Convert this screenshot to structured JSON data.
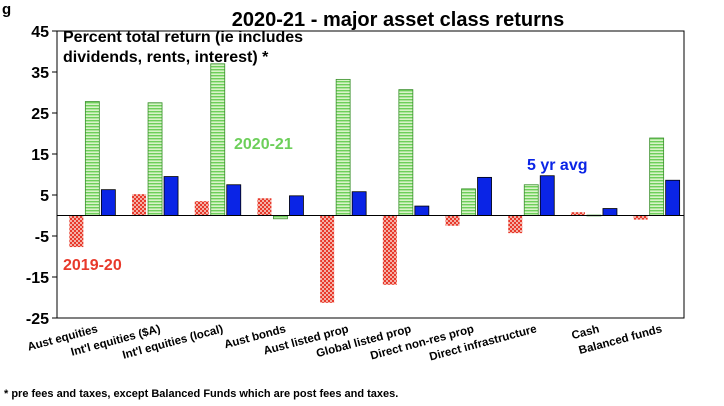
{
  "header": {
    "partial_title": "g",
    "title": "2020-21 - major asset class returns"
  },
  "note_line1": "Percent total return (ie includes",
  "note_line2": "dividends, rents, interest) *",
  "footnote": "* pre fees and taxes, except Balanced Funds which are post fees and taxes.",
  "colors": {
    "series_2019_20": "#e8392b",
    "series_2020_21": "#6dcf5a",
    "series_5yr": "#0a24e6"
  },
  "chart_data": {
    "type": "bar",
    "title": "2020-21 - major asset class returns",
    "categories": [
      "Aust equities",
      "Int'l equities ($A)",
      "Int'l equities (local)",
      "Aust bonds",
      "Aust listed prop",
      "Global listed prop",
      "Direct non-res prop",
      "Direct infrastructure",
      "Cash",
      "Balanced funds"
    ],
    "series": [
      {
        "name": "2019-20",
        "values": [
          -7.7,
          5.2,
          3.5,
          4.2,
          -21.3,
          -16.9,
          -2.5,
          -4.3,
          0.8,
          -1.0
        ]
      },
      {
        "name": "2020-21",
        "values": [
          27.8,
          27.5,
          37.0,
          -0.8,
          33.2,
          30.7,
          6.5,
          7.5,
          0.1,
          18.9
        ]
      },
      {
        "name": "5 yr avg",
        "values": [
          6.3,
          9.5,
          7.5,
          4.8,
          5.8,
          2.3,
          9.3,
          9.7,
          1.7,
          8.6
        ]
      }
    ],
    "ylim": [
      -25,
      45
    ],
    "yticks": [
      "45",
      "35",
      "25",
      "15",
      "5",
      "-5",
      "-15",
      "-25"
    ],
    "ytick_values": [
      45,
      35,
      25,
      15,
      5,
      -5,
      -15,
      -25
    ]
  }
}
